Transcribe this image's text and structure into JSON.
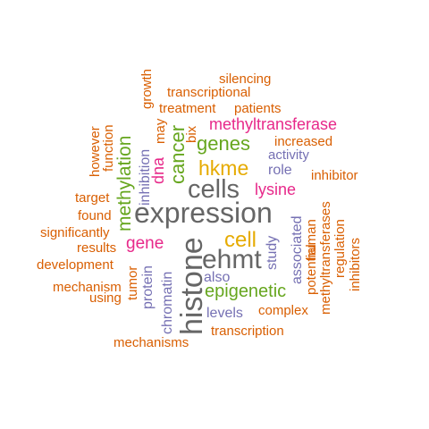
{
  "palette": {
    "orange": "#d95f02",
    "purple": "#7570b3",
    "magenta": "#e7298a",
    "green": "#66a61e",
    "gold": "#e6ab02",
    "gray": "#666666"
  },
  "words": [
    {
      "text": "expression",
      "color": "gray"
    },
    {
      "text": "histone",
      "color": "gray"
    },
    {
      "text": "cells",
      "color": "gray"
    },
    {
      "text": "ehmt",
      "color": "gray"
    },
    {
      "text": "cell",
      "color": "gold"
    },
    {
      "text": "hkme",
      "color": "gold"
    },
    {
      "text": "cancer",
      "color": "green"
    },
    {
      "text": "methylation",
      "color": "green"
    },
    {
      "text": "genes",
      "color": "green"
    },
    {
      "text": "epigenetic",
      "color": "green"
    },
    {
      "text": "methyltransferase",
      "color": "magenta"
    },
    {
      "text": "lysine",
      "color": "magenta"
    },
    {
      "text": "gene",
      "color": "magenta"
    },
    {
      "text": "dna",
      "color": "magenta"
    },
    {
      "text": "inhibition",
      "color": "purple"
    },
    {
      "text": "chromatin",
      "color": "purple"
    },
    {
      "text": "protein",
      "color": "purple"
    },
    {
      "text": "role",
      "color": "purple"
    },
    {
      "text": "activity",
      "color": "purple"
    },
    {
      "text": "study",
      "color": "purple"
    },
    {
      "text": "also",
      "color": "purple"
    },
    {
      "text": "levels",
      "color": "purple"
    },
    {
      "text": "associated",
      "color": "purple"
    },
    {
      "text": "silencing",
      "color": "orange"
    },
    {
      "text": "growth",
      "color": "orange"
    },
    {
      "text": "transcriptional",
      "color": "orange"
    },
    {
      "text": "treatment",
      "color": "orange"
    },
    {
      "text": "patients",
      "color": "orange"
    },
    {
      "text": "may",
      "color": "orange"
    },
    {
      "text": "bix",
      "color": "orange"
    },
    {
      "text": "however",
      "color": "orange"
    },
    {
      "text": "function",
      "color": "orange"
    },
    {
      "text": "increased",
      "color": "orange"
    },
    {
      "text": "inhibitor",
      "color": "orange"
    },
    {
      "text": "target",
      "color": "orange"
    },
    {
      "text": "found",
      "color": "orange"
    },
    {
      "text": "significantly",
      "color": "orange"
    },
    {
      "text": "results",
      "color": "orange"
    },
    {
      "text": "development",
      "color": "orange"
    },
    {
      "text": "mechanism",
      "color": "orange"
    },
    {
      "text": "using",
      "color": "orange"
    },
    {
      "text": "tumor",
      "color": "orange"
    },
    {
      "text": "human",
      "color": "orange"
    },
    {
      "text": "potential",
      "color": "orange"
    },
    {
      "text": "methyltransferases",
      "color": "orange"
    },
    {
      "text": "regulation",
      "color": "orange"
    },
    {
      "text": "inhibitors",
      "color": "orange"
    },
    {
      "text": "complex",
      "color": "orange"
    },
    {
      "text": "transcription",
      "color": "orange"
    },
    {
      "text": "mechanisms",
      "color": "orange"
    }
  ]
}
